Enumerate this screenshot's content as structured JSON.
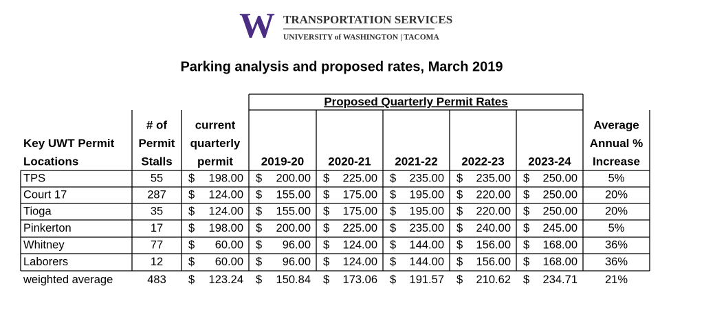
{
  "header": {
    "logo": "W",
    "org": "TRANSPORTATION SERVICES",
    "unit": "UNIVERSITY of WASHINGTON | TACOMA"
  },
  "title": "Parking analysis and proposed rates, March 2019",
  "table": {
    "group_header": "Proposed Quarterly Permit Rates",
    "columns": [
      [
        "Key UWT Permit",
        "Locations"
      ],
      [
        "# of",
        "Permit",
        "Stalls"
      ],
      [
        "current",
        "quarterly",
        "permit"
      ],
      [
        "2019-20"
      ],
      [
        "2020-21"
      ],
      [
        "2021-22"
      ],
      [
        "2022-23"
      ],
      [
        "2023-24"
      ],
      [
        "Average",
        "Annual %",
        "Increase"
      ]
    ],
    "rows": [
      [
        "TPS",
        "55",
        [
          "$",
          "198.00"
        ],
        [
          "$",
          "200.00"
        ],
        [
          "$",
          "225.00"
        ],
        [
          "$",
          "235.00"
        ],
        [
          "$",
          "235.00"
        ],
        [
          "$",
          "250.00"
        ],
        "5%"
      ],
      [
        "Court 17",
        "287",
        [
          "$",
          "124.00"
        ],
        [
          "$",
          "155.00"
        ],
        [
          "$",
          "175.00"
        ],
        [
          "$",
          "195.00"
        ],
        [
          "$",
          "220.00"
        ],
        [
          "$",
          "250.00"
        ],
        "20%"
      ],
      [
        "Tioga",
        "35",
        [
          "$",
          "124.00"
        ],
        [
          "$",
          "155.00"
        ],
        [
          "$",
          "175.00"
        ],
        [
          "$",
          "195.00"
        ],
        [
          "$",
          "220.00"
        ],
        [
          "$",
          "250.00"
        ],
        "20%"
      ],
      [
        "Pinkerton",
        "17",
        [
          "$",
          "198.00"
        ],
        [
          "$",
          "200.00"
        ],
        [
          "$",
          "225.00"
        ],
        [
          "$",
          "235.00"
        ],
        [
          "$",
          "240.00"
        ],
        [
          "$",
          "245.00"
        ],
        "5%"
      ],
      [
        "Whitney",
        "77",
        [
          "$",
          "60.00"
        ],
        [
          "$",
          "96.00"
        ],
        [
          "$",
          "124.00"
        ],
        [
          "$",
          "144.00"
        ],
        [
          "$",
          "156.00"
        ],
        [
          "$",
          "168.00"
        ],
        "36%"
      ],
      [
        "Laborers",
        "12",
        [
          "$",
          "60.00"
        ],
        [
          "$",
          "96.00"
        ],
        [
          "$",
          "124.00"
        ],
        [
          "$",
          "144.00"
        ],
        [
          "$",
          "156.00"
        ],
        [
          "$",
          "168.00"
        ],
        "36%"
      ],
      [
        "weighted average",
        "483",
        [
          "$",
          "123.24"
        ],
        [
          "$",
          "150.84"
        ],
        [
          "$",
          "173.06"
        ],
        [
          "$",
          "191.57"
        ],
        [
          "$",
          "210.62"
        ],
        [
          "$",
          "234.71"
        ],
        "21%"
      ]
    ]
  }
}
